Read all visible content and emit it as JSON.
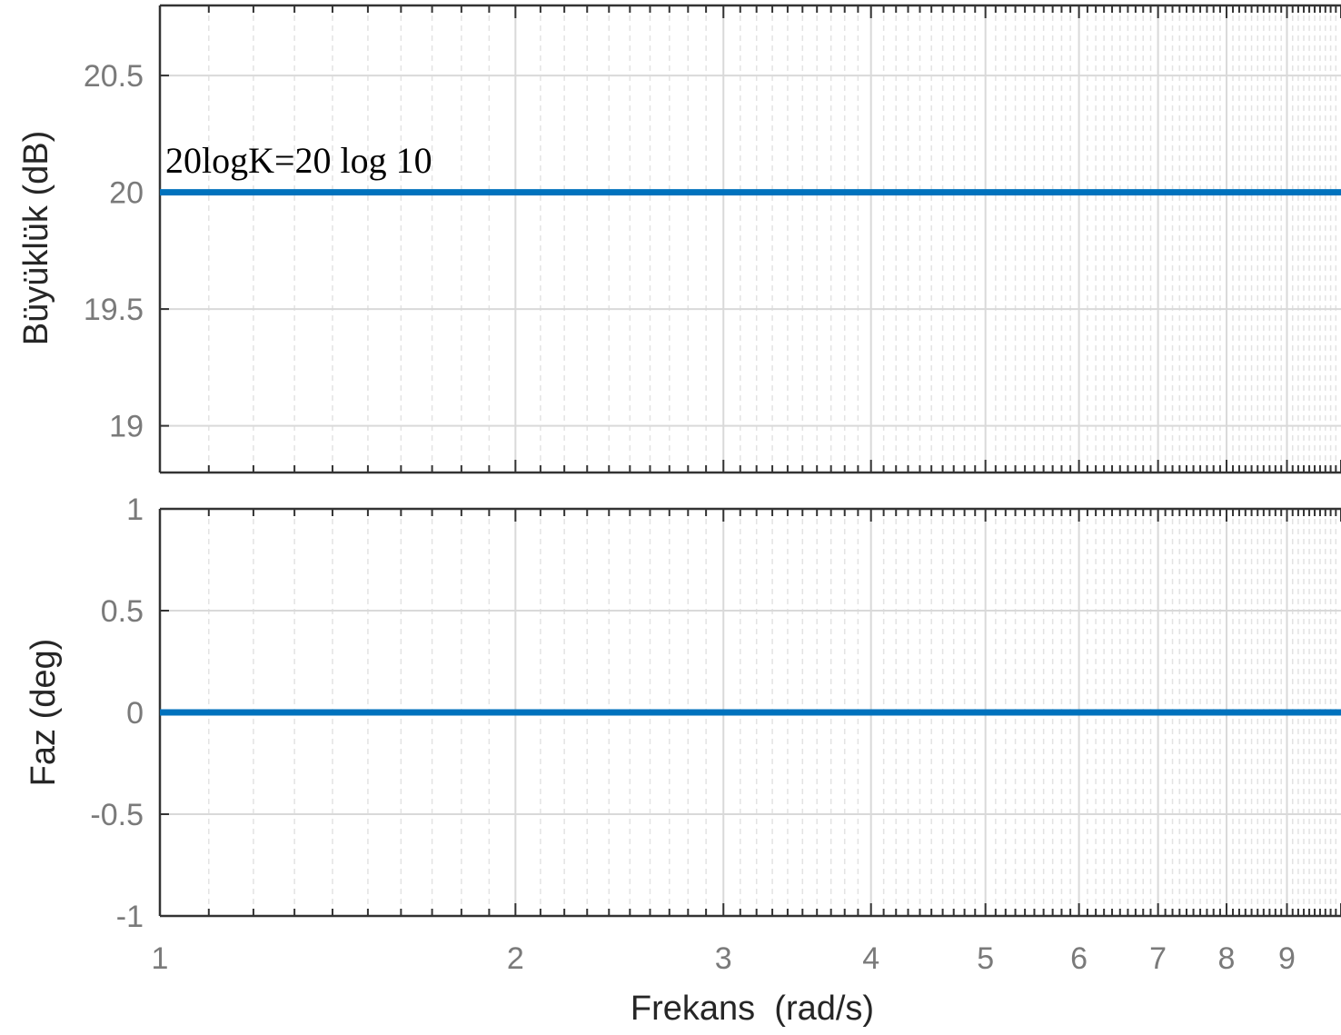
{
  "chart_data": [
    {
      "type": "line",
      "panel": "magnitude",
      "ylabel": "Büyüklük (dB)",
      "xlabel": "",
      "xscale": "log",
      "xlim": [
        1,
        10
      ],
      "ylim": [
        18.8,
        20.8
      ],
      "yticks": [
        19,
        19.5,
        20,
        20.5
      ],
      "ytick_labels": [
        "19",
        "19.5",
        "20",
        "20.5"
      ],
      "grid": true,
      "series": [
        {
          "x": [
            1,
            10
          ],
          "y": [
            20,
            20
          ],
          "color": "#0072BD"
        }
      ],
      "annotation": "20logK=20 log 10"
    },
    {
      "type": "line",
      "panel": "phase",
      "ylabel": "Faz (deg)",
      "xlabel": "Frekans  (rad/s)",
      "xscale": "log",
      "xlim": [
        1,
        10
      ],
      "ylim": [
        -1,
        1
      ],
      "yticks": [
        -1,
        -0.5,
        0,
        0.5,
        1
      ],
      "ytick_labels": [
        "-1",
        "-0.5",
        "0",
        "0.5",
        "1"
      ],
      "xticks": [
        1,
        2,
        3,
        4,
        5,
        6,
        7,
        8,
        9
      ],
      "xtick_labels": [
        "1",
        "2",
        "3",
        "4",
        "5",
        "6",
        "7",
        "8",
        "9"
      ],
      "grid": true,
      "series": [
        {
          "x": [
            1,
            10
          ],
          "y": [
            0,
            0
          ],
          "color": "#0072BD"
        }
      ]
    }
  ]
}
